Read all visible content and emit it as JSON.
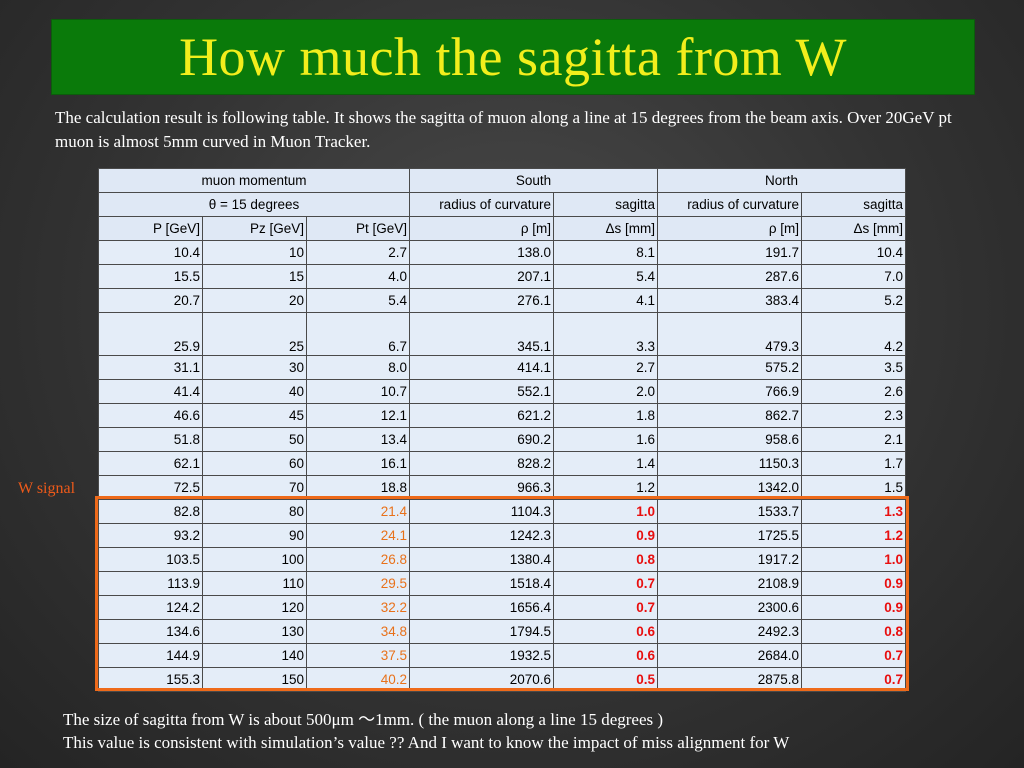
{
  "title": "How much the sagitta from W",
  "intro": "The calculation result is following table. It shows the sagitta  of muon along a line at 15 degrees from the beam axis. Over 20GeV pt muon is almost 5mm curved in Muon Tracker.",
  "table": {
    "group_headers": {
      "momentum": "muon momentum",
      "south": "South",
      "north": "North"
    },
    "sub_headers": {
      "theta": "θ  = 15 degrees",
      "south_radius": "radius of curvature",
      "south_sagitta": "sagitta",
      "north_radius": "radius of curvature",
      "north_sagitta": "sagitta"
    },
    "columns": [
      "P [GeV]",
      "Pz [GeV]",
      "Pt [GeV]",
      "ρ  [m]",
      "Δs [mm]",
      "ρ  [m]",
      "Δs [mm]"
    ],
    "rows": [
      [
        "10.4",
        "10",
        "2.7",
        "138.0",
        "8.1",
        "191.7",
        "10.4"
      ],
      [
        "15.5",
        "15",
        "4.0",
        "207.1",
        "5.4",
        "287.6",
        "7.0"
      ],
      [
        "20.7",
        "20",
        "5.4",
        "276.1",
        "4.1",
        "383.4",
        "5.2"
      ],
      [
        "25.9",
        "25",
        "6.7",
        "345.1",
        "3.3",
        "479.3",
        "4.2"
      ],
      [
        "31.1",
        "30",
        "8.0",
        "414.1",
        "2.7",
        "575.2",
        "3.5"
      ],
      [
        "41.4",
        "40",
        "10.7",
        "552.1",
        "2.0",
        "766.9",
        "2.6"
      ],
      [
        "46.6",
        "45",
        "12.1",
        "621.2",
        "1.8",
        "862.7",
        "2.3"
      ],
      [
        "51.8",
        "50",
        "13.4",
        "690.2",
        "1.6",
        "958.6",
        "2.1"
      ],
      [
        "62.1",
        "60",
        "16.1",
        "828.2",
        "1.4",
        "1150.3",
        "1.7"
      ],
      [
        "72.5",
        "70",
        "18.8",
        "966.3",
        "1.2",
        "1342.0",
        "1.5"
      ],
      [
        "82.8",
        "80",
        "21.4",
        "1104.3",
        "1.0",
        "1533.7",
        "1.3"
      ],
      [
        "93.2",
        "90",
        "24.1",
        "1242.3",
        "0.9",
        "1725.5",
        "1.2"
      ],
      [
        "103.5",
        "100",
        "26.8",
        "1380.4",
        "0.8",
        "1917.2",
        "1.0"
      ],
      [
        "113.9",
        "110",
        "29.5",
        "1518.4",
        "0.7",
        "2108.9",
        "0.9"
      ],
      [
        "124.2",
        "120",
        "32.2",
        "1656.4",
        "0.7",
        "2300.6",
        "0.9"
      ],
      [
        "134.6",
        "130",
        "34.8",
        "1794.5",
        "0.6",
        "2492.3",
        "0.8"
      ],
      [
        "144.9",
        "140",
        "37.5",
        "1932.5",
        "0.6",
        "2684.0",
        "0.7"
      ],
      [
        "155.3",
        "150",
        "40.2",
        "2070.6",
        "0.5",
        "2875.8",
        "0.7"
      ]
    ],
    "w_signal_start_row": 10
  },
  "w_signal_label": "W signal",
  "footer": {
    "line1": "The size of sagitta from W is about 500μm ～1mm. ( the muon along a line 15 degrees )",
    "line2": "This value is consistent with simulation’s value ?? And I want to know the impact of miss alignment for W"
  },
  "colors": {
    "title_bg": "#0a7a0a",
    "title_text": "#f2ee1c",
    "highlight_orange": "#ee6a1a",
    "sagitta_red": "#e80f0f"
  }
}
